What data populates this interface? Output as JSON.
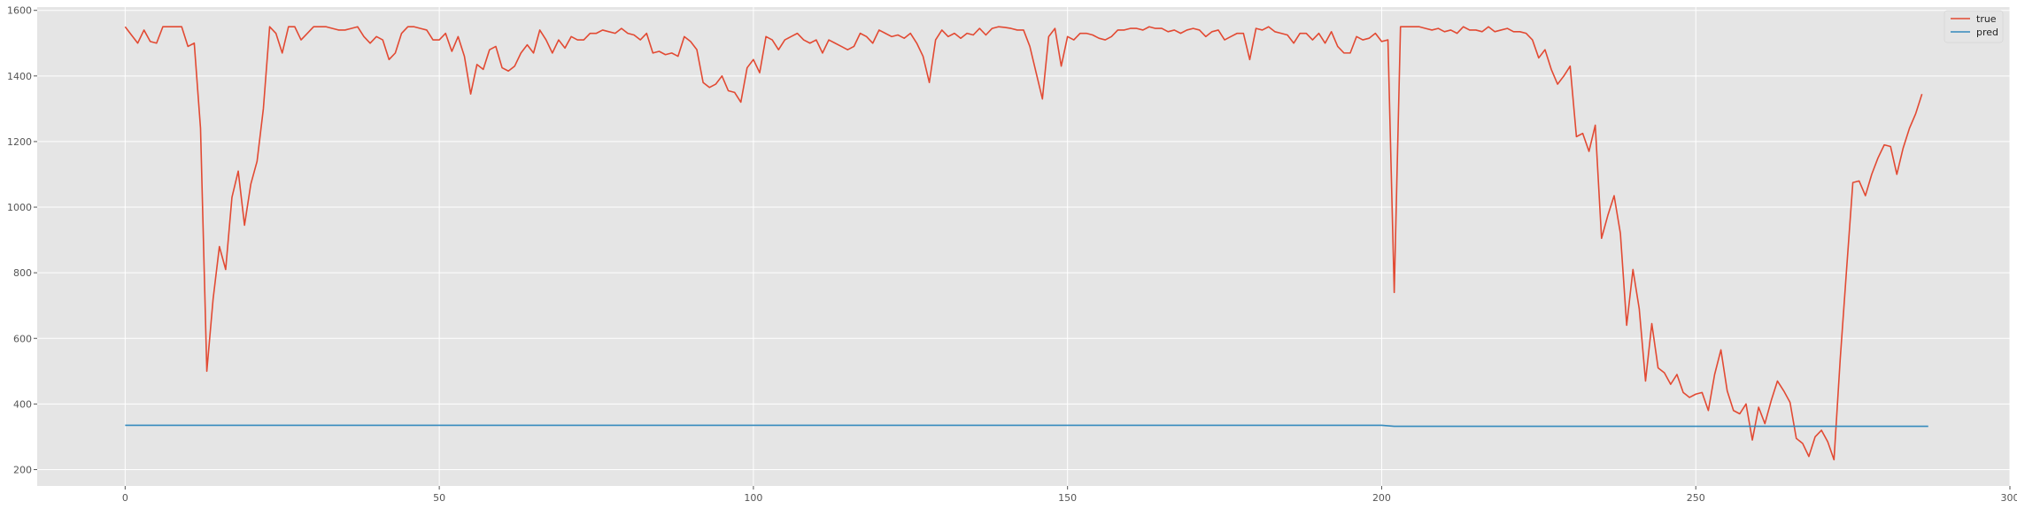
{
  "chart_data": {
    "type": "line",
    "title": "",
    "xlabel": "",
    "ylabel": "",
    "xlim": [
      -14,
      300
    ],
    "ylim": [
      150,
      1610
    ],
    "x_ticks": [
      0,
      50,
      100,
      150,
      200,
      250,
      300
    ],
    "y_ticks": [
      200,
      400,
      600,
      800,
      1000,
      1200,
      1400,
      1600
    ],
    "grid": true,
    "legend_position": "top-right",
    "series": [
      {
        "name": "true",
        "color": "#e24a33",
        "values": [
          1550,
          1525,
          1500,
          1540,
          1505,
          1500,
          1550,
          1550,
          1550,
          1550,
          1490,
          1500,
          1240,
          500,
          720,
          880,
          810,
          1030,
          1110,
          945,
          1070,
          1140,
          1300,
          1550,
          1530,
          1470,
          1550,
          1550,
          1510,
          1530,
          1550,
          1550,
          1550,
          1545,
          1540,
          1540,
          1545,
          1550,
          1520,
          1500,
          1520,
          1510,
          1450,
          1470,
          1530,
          1550,
          1550,
          1545,
          1540,
          1510,
          1510,
          1530,
          1475,
          1520,
          1460,
          1345,
          1435,
          1420,
          1480,
          1490,
          1425,
          1415,
          1430,
          1470,
          1495,
          1470,
          1540,
          1510,
          1470,
          1510,
          1485,
          1520,
          1510,
          1510,
          1530,
          1530,
          1540,
          1535,
          1530,
          1545,
          1530,
          1525,
          1510,
          1530,
          1470,
          1475,
          1465,
          1470,
          1460,
          1520,
          1505,
          1480,
          1380,
          1365,
          1375,
          1400,
          1355,
          1350,
          1320,
          1425,
          1450,
          1410,
          1520,
          1510,
          1480,
          1510,
          1520,
          1530,
          1510,
          1500,
          1510,
          1470,
          1510,
          1500,
          1490,
          1480,
          1490,
          1530,
          1520,
          1500,
          1540,
          1530,
          1520,
          1525,
          1515,
          1530,
          1500,
          1460,
          1380,
          1510,
          1540,
          1520,
          1530,
          1515,
          1530,
          1525,
          1545,
          1525,
          1545,
          1550,
          1548,
          1545,
          1540,
          1540,
          1490,
          1410,
          1330,
          1520,
          1545,
          1430,
          1520,
          1510,
          1530,
          1530,
          1525,
          1515,
          1510,
          1520,
          1540,
          1540,
          1545,
          1545,
          1540,
          1550,
          1545,
          1545,
          1535,
          1540,
          1530,
          1540,
          1545,
          1540,
          1520,
          1535,
          1540,
          1510,
          1520,
          1530,
          1530,
          1450,
          1545,
          1540,
          1550,
          1535,
          1530,
          1525,
          1500,
          1530,
          1530,
          1510,
          1530,
          1500,
          1535,
          1490,
          1470,
          1470,
          1520,
          1510,
          1515,
          1530,
          1505,
          1510,
          740,
          1550,
          1550,
          1550,
          1550,
          1545,
          1540,
          1545,
          1535,
          1540,
          1530,
          1550,
          1540,
          1540,
          1535,
          1550,
          1535,
          1540,
          1545,
          1535,
          1535,
          1530,
          1510,
          1455,
          1480,
          1420,
          1375,
          1400,
          1430,
          1215,
          1225,
          1170,
          1250,
          905,
          975,
          1035,
          920,
          640,
          810,
          690,
          470,
          645,
          510,
          495,
          460,
          490,
          435,
          420,
          430,
          435,
          380,
          490,
          565,
          440,
          380,
          370,
          400,
          290,
          390,
          340,
          410,
          470,
          440,
          405,
          295,
          280,
          240,
          300,
          320,
          285,
          230,
          540,
          810,
          1075,
          1080,
          1035,
          1100,
          1150,
          1190,
          1185,
          1100,
          1180,
          1240,
          1285,
          1345
        ]
      },
      {
        "name": "pred",
        "color": "#348abd",
        "points": [
          [
            0,
            335
          ],
          [
            200,
            335
          ],
          [
            202,
            332
          ],
          [
            287,
            332
          ]
        ]
      }
    ]
  }
}
